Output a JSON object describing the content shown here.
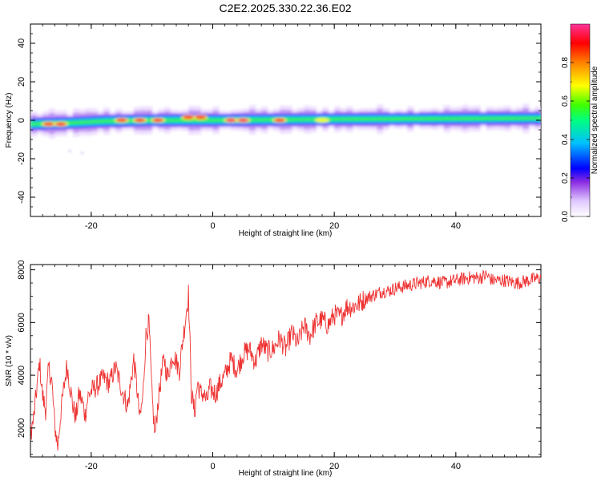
{
  "title": "C2E2.2025.330.22.36.E02",
  "chart_data": [
    {
      "type": "heatmap",
      "xlabel": "Height of straight line (km)",
      "ylabel": "Frequency (Hz)",
      "xlim": [
        -30,
        54
      ],
      "ylim": [
        -50,
        50
      ],
      "xticks": [
        -20,
        0,
        20,
        40
      ],
      "yticks": [
        -40,
        -20,
        0,
        20,
        40
      ],
      "xtick_labels": [
        "-20",
        "0",
        "20",
        "40"
      ],
      "ytick_labels": [
        "-40",
        "-20",
        "0",
        "20",
        "40"
      ],
      "signal_center_hz": [
        {
          "x": -30,
          "y": -2
        },
        {
          "x": -24,
          "y": -1.5
        },
        {
          "x": -18,
          "y": -0.5
        },
        {
          "x": -10,
          "y": 0
        },
        {
          "x": 0,
          "y": 0
        },
        {
          "x": 20,
          "y": 0.5
        },
        {
          "x": 54,
          "y": 1
        }
      ],
      "peaks": [
        {
          "x": -27,
          "y": -2,
          "amp": 0.9
        },
        {
          "x": -25,
          "y": -2,
          "amp": 0.95
        },
        {
          "x": -15,
          "y": 0,
          "amp": 0.9
        },
        {
          "x": -12,
          "y": 0,
          "amp": 0.9
        },
        {
          "x": -9,
          "y": 0,
          "amp": 0.9
        },
        {
          "x": -4,
          "y": 1.5,
          "amp": 0.95
        },
        {
          "x": -2,
          "y": 1.5,
          "amp": 0.95
        },
        {
          "x": 3,
          "y": 0,
          "amp": 1.0
        },
        {
          "x": 5,
          "y": 0,
          "amp": 1.0
        },
        {
          "x": 11,
          "y": 0,
          "amp": 0.95
        },
        {
          "x": 18,
          "y": 0,
          "amp": 0.7
        }
      ],
      "colorbar": {
        "label": "Normalized spectral amplitude",
        "range": [
          0,
          1
        ],
        "ticks": [
          0.0,
          0.2,
          0.4,
          0.6,
          0.8
        ],
        "tick_labels": [
          "0.0",
          "0.2",
          "0.4",
          "0.6",
          "0.8"
        ],
        "colors": [
          "#ffffff",
          "#e0c8ff",
          "#8a2be2",
          "#0000ff",
          "#00c0ff",
          "#00ff80",
          "#40ff00",
          "#ffff00",
          "#ff8000",
          "#ff0000",
          "#ff3399"
        ]
      }
    },
    {
      "type": "line",
      "xlabel": "Height of straight line (km)",
      "ylabel": "SNR (10 * v/v)",
      "xlim": [
        -30,
        54
      ],
      "ylim": [
        900,
        8200
      ],
      "xticks": [
        -20,
        0,
        20,
        40
      ],
      "yticks": [
        2000,
        4000,
        6000,
        8000
      ],
      "xtick_labels": [
        "-20",
        "0",
        "20",
        "40"
      ],
      "ytick_labels": [
        "2000",
        "4000",
        "6000",
        "8000"
      ],
      "color": "#ee3333",
      "series": [
        {
          "name": "SNR",
          "points": [
            [
              -30,
              1800
            ],
            [
              -29.5,
              2300
            ],
            [
              -29,
              3400
            ],
            [
              -28.5,
              4500
            ],
            [
              -28,
              3200
            ],
            [
              -27.5,
              2700
            ],
            [
              -27,
              4300
            ],
            [
              -26.5,
              3800
            ],
            [
              -26,
              2100
            ],
            [
              -25.5,
              1300
            ],
            [
              -25,
              2600
            ],
            [
              -24.5,
              3500
            ],
            [
              -24,
              4400
            ],
            [
              -23.5,
              3600
            ],
            [
              -23,
              2800
            ],
            [
              -22.5,
              2400
            ],
            [
              -22,
              3300
            ],
            [
              -21.5,
              3000
            ],
            [
              -21,
              2500
            ],
            [
              -20.5,
              3200
            ],
            [
              -20,
              3400
            ],
            [
              -19,
              3600
            ],
            [
              -18,
              3900
            ],
            [
              -17,
              3700
            ],
            [
              -16,
              4300
            ],
            [
              -15,
              3500
            ],
            [
              -14,
              2800
            ],
            [
              -13,
              4600
            ],
            [
              -12.5,
              3600
            ],
            [
              -12,
              2300
            ],
            [
              -11.5,
              3200
            ],
            [
              -11,
              5500
            ],
            [
              -10.5,
              6000
            ],
            [
              -10,
              3200
            ],
            [
              -9.5,
              1700
            ],
            [
              -9,
              3000
            ],
            [
              -8.5,
              3900
            ],
            [
              -8,
              4700
            ],
            [
              -7.5,
              3900
            ],
            [
              -7,
              4400
            ],
            [
              -6.5,
              4800
            ],
            [
              -6,
              4500
            ],
            [
              -5.5,
              4200
            ],
            [
              -5,
              5200
            ],
            [
              -4.5,
              6100
            ],
            [
              -4,
              7100
            ],
            [
              -3.5,
              3300
            ],
            [
              -3,
              2600
            ],
            [
              -2.5,
              3700
            ],
            [
              -2,
              3300
            ],
            [
              -1.5,
              3300
            ],
            [
              -1,
              3000
            ],
            [
              -0.5,
              3500
            ],
            [
              0,
              3400
            ],
            [
              0.5,
              3300
            ],
            [
              1,
              3600
            ],
            [
              2,
              4000
            ],
            [
              3,
              4600
            ],
            [
              4,
              4200
            ],
            [
              5,
              4800
            ],
            [
              6,
              5000
            ],
            [
              7,
              4500
            ],
            [
              8,
              5200
            ],
            [
              9,
              4900
            ],
            [
              10,
              5000
            ],
            [
              11,
              5400
            ],
            [
              12,
              5000
            ],
            [
              13,
              5600
            ],
            [
              14,
              5200
            ],
            [
              15,
              5900
            ],
            [
              16,
              5500
            ],
            [
              17,
              6000
            ],
            [
              18,
              6100
            ],
            [
              19,
              5900
            ],
            [
              20,
              6300
            ],
            [
              21,
              6200
            ],
            [
              22,
              6600
            ],
            [
              23,
              6600
            ],
            [
              24,
              6700
            ],
            [
              25,
              6900
            ],
            [
              26,
              7000
            ],
            [
              27,
              7100
            ],
            [
              28,
              7200
            ],
            [
              29,
              7200
            ],
            [
              30,
              7300
            ],
            [
              32,
              7400
            ],
            [
              34,
              7500
            ],
            [
              36,
              7600
            ],
            [
              38,
              7500
            ],
            [
              40,
              7600
            ],
            [
              42,
              7700
            ],
            [
              44,
              7700
            ],
            [
              45,
              7800
            ],
            [
              46,
              7600
            ],
            [
              48,
              7600
            ],
            [
              50,
              7500
            ],
            [
              52,
              7600
            ],
            [
              54,
              7700
            ]
          ]
        }
      ]
    }
  ]
}
